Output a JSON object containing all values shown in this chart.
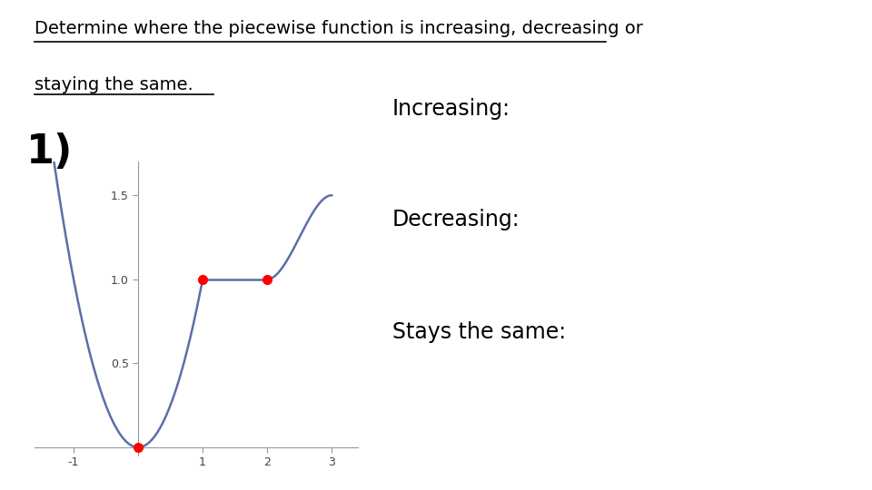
{
  "title_line1": "Determine where the piecewise function is increasing, decreasing or",
  "title_line2": "staying the same.",
  "label_number": "1)",
  "label_increasing": "Increasing:",
  "label_decreasing": "Decreasing:",
  "label_stays": "Stays the same:",
  "curve_color": "#5B6FA8",
  "dot_color": "#FF0000",
  "bg_color": "#FFFFFF",
  "text_color": "#000000",
  "xlim": [
    -1.6,
    3.4
  ],
  "ylim": [
    -0.5,
    17
  ],
  "title_fontsize": 14,
  "number_fontsize": 32,
  "label_fontsize": 17
}
